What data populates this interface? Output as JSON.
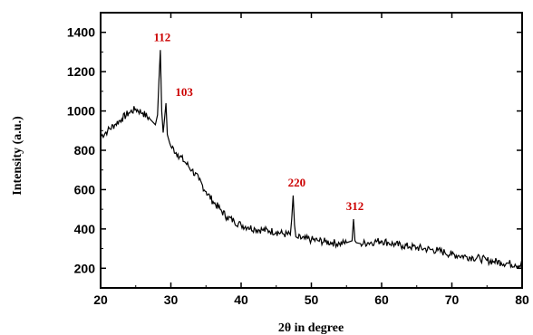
{
  "chart_data": {
    "type": "line",
    "title": "",
    "xlabel": "2θ in degree",
    "ylabel": "Intensity (a.u.)",
    "xlim": [
      20,
      80
    ],
    "ylim": [
      100,
      1500
    ],
    "x_ticks": [
      "20",
      "30",
      "40",
      "50",
      "60",
      "70",
      "80"
    ],
    "y_ticks": [
      "200",
      "400",
      "600",
      "800",
      "1000",
      "1200",
      "1400"
    ],
    "grid": false,
    "legend": "none",
    "series": [
      {
        "color": "#000000",
        "x": [
          20,
          21,
          22,
          23,
          24,
          25,
          26,
          27,
          27.8,
          28.1,
          28.3,
          28.5,
          28.7,
          28.9,
          29.1,
          29.3,
          29.5,
          29.8,
          30,
          31,
          32,
          33,
          34,
          35,
          36,
          37,
          38,
          39,
          40,
          41,
          42,
          43,
          44,
          45,
          46,
          47,
          47.2,
          47.4,
          47.6,
          47.8,
          48,
          49,
          50,
          51,
          52,
          53,
          54,
          55,
          55.8,
          56.0,
          56.2,
          56.4,
          57,
          58,
          59,
          60,
          61,
          62,
          63,
          64,
          65,
          66,
          67,
          68,
          69,
          70,
          71,
          72,
          73,
          74,
          75,
          76,
          77,
          78,
          79,
          80
        ],
        "y": [
          870,
          900,
          930,
          960,
          990,
          1010,
          990,
          960,
          930,
          980,
          1150,
          1310,
          1000,
          890,
          960,
          1040,
          880,
          840,
          820,
          780,
          740,
          700,
          650,
          590,
          540,
          500,
          460,
          440,
          420,
          410,
          400,
          395,
          390,
          385,
          375,
          370,
          450,
          570,
          420,
          360,
          355,
          350,
          345,
          340,
          335,
          330,
          325,
          330,
          340,
          450,
          340,
          330,
          325,
          330,
          335,
          340,
          330,
          320,
          315,
          310,
          305,
          300,
          295,
          290,
          280,
          270,
          265,
          260,
          255,
          250,
          240,
          235,
          230,
          225,
          220,
          215
        ]
      }
    ],
    "annotations": [
      {
        "text": "112",
        "x": 28.5,
        "y": 1310,
        "color": "#cc0000"
      },
      {
        "text": "103",
        "x": 29.3,
        "y": 1040,
        "color": "#cc0000"
      },
      {
        "text": "220",
        "x": 47.4,
        "y": 570,
        "color": "#cc0000"
      },
      {
        "text": "312",
        "x": 56.2,
        "y": 450,
        "color": "#cc0000"
      }
    ]
  }
}
